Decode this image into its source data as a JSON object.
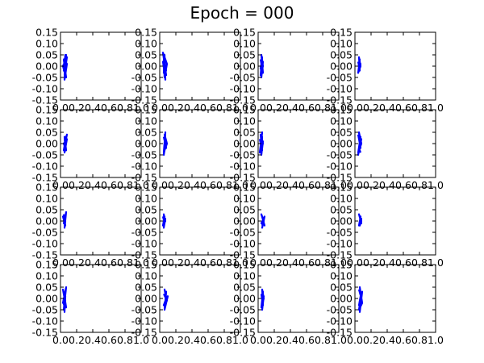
{
  "chart_data": {
    "type": "line",
    "title": "Epoch = 000",
    "grid": false,
    "layout": "4x4 grid of small plots",
    "series_color": "#0000ff",
    "xlim": [
      0.0,
      1.0
    ],
    "ylim": [
      -0.15,
      0.15
    ],
    "xticks": [
      "0.0",
      "0.2",
      "0.4",
      "0.6",
      "0.8",
      "1.0"
    ],
    "yticks": [
      "0.15",
      "0.10",
      "0.05",
      "0.00",
      "-0.05",
      "-0.10",
      "-0.15"
    ],
    "subplots": [
      {
        "x": [
          0.04,
          0.07,
          0.05,
          0.08,
          0.03,
          0.07,
          0.04,
          0.08,
          0.05,
          0.06,
          0.04,
          0.07,
          0.05
        ],
        "y": [
          0.02,
          0.05,
          -0.03,
          0.04,
          0.0,
          -0.05,
          0.03,
          0.01,
          -0.06,
          0.05,
          -0.02,
          0.02,
          -0.04
        ]
      },
      {
        "x": [
          0.05,
          0.08,
          0.04,
          0.09,
          0.06,
          0.05,
          0.08,
          0.04,
          0.07,
          0.06,
          0.05,
          0.08,
          0.06
        ],
        "y": [
          0.03,
          -0.04,
          0.06,
          0.01,
          -0.05,
          0.04,
          -0.02,
          0.02,
          -0.06,
          0.05,
          -0.03,
          0.0,
          -0.05
        ]
      },
      {
        "x": [
          0.03,
          0.06,
          0.04,
          0.06,
          0.03,
          0.05,
          0.04,
          0.06,
          0.04,
          0.05,
          0.03,
          0.05
        ],
        "y": [
          0.03,
          -0.03,
          0.05,
          0.0,
          -0.04,
          0.04,
          -0.02,
          0.02,
          -0.05,
          0.03,
          -0.01,
          -0.03
        ]
      },
      {
        "x": [
          0.04,
          0.06,
          0.05,
          0.07,
          0.04,
          0.06,
          0.05,
          0.07,
          0.04,
          0.06
        ],
        "y": [
          0.02,
          -0.02,
          0.04,
          0.0,
          -0.03,
          0.03,
          -0.01,
          0.01,
          -0.03,
          0.02
        ]
      },
      {
        "x": [
          0.05,
          0.08,
          0.04,
          0.07,
          0.05,
          0.08,
          0.04,
          0.07,
          0.05,
          0.06,
          0.05
        ],
        "y": [
          0.01,
          0.04,
          -0.03,
          0.03,
          -0.04,
          0.02,
          0.0,
          -0.03,
          0.03,
          -0.02,
          -0.04
        ]
      },
      {
        "x": [
          0.05,
          0.08,
          0.06,
          0.09,
          0.05,
          0.07,
          0.06,
          0.08,
          0.05,
          0.07,
          0.06
        ],
        "y": [
          0.03,
          -0.02,
          0.04,
          0.0,
          -0.04,
          0.05,
          -0.03,
          0.01,
          -0.05,
          0.02,
          -0.03
        ]
      },
      {
        "x": [
          0.02,
          0.05,
          0.03,
          0.06,
          0.02,
          0.05,
          0.03,
          0.06,
          0.04,
          0.05,
          0.03,
          0.05
        ],
        "y": [
          0.02,
          -0.03,
          0.04,
          0.0,
          -0.04,
          0.05,
          -0.02,
          0.01,
          -0.05,
          0.03,
          -0.01,
          -0.03
        ]
      },
      {
        "x": [
          0.04,
          0.07,
          0.05,
          0.08,
          0.04,
          0.07,
          0.05,
          0.08,
          0.04,
          0.06,
          0.05,
          0.07
        ],
        "y": [
          0.04,
          -0.02,
          0.05,
          0.0,
          -0.04,
          0.03,
          -0.03,
          0.02,
          -0.05,
          0.01,
          -0.02,
          -0.04
        ]
      },
      {
        "x": [
          0.04,
          0.06,
          0.03,
          0.06,
          0.05,
          0.07,
          0.04,
          0.06,
          0.05
        ],
        "y": [
          0.03,
          -0.02,
          0.02,
          0.0,
          -0.03,
          0.04,
          -0.01,
          0.01,
          -0.02
        ]
      },
      {
        "x": [
          0.04,
          0.06,
          0.05,
          0.07,
          0.04,
          0.06,
          0.05,
          0.07,
          0.05
        ],
        "y": [
          0.02,
          -0.01,
          0.03,
          0.0,
          -0.02,
          0.02,
          -0.03,
          0.01,
          -0.02
        ]
      },
      {
        "x": [
          0.05,
          0.08,
          0.04,
          0.07,
          0.05,
          0.08,
          0.04,
          0.07,
          0.05
        ],
        "y": [
          0.02,
          -0.02,
          0.03,
          0.0,
          -0.03,
          0.02,
          -0.01,
          0.01,
          -0.02
        ]
      },
      {
        "x": [
          0.06,
          0.08,
          0.05,
          0.08,
          0.06,
          0.07,
          0.05,
          0.08,
          0.06
        ],
        "y": [
          0.02,
          -0.01,
          0.03,
          0.0,
          -0.02,
          0.02,
          -0.02,
          0.01,
          -0.02
        ]
      },
      {
        "x": [
          0.04,
          0.07,
          0.03,
          0.06,
          0.04,
          0.07,
          0.03,
          0.06,
          0.05,
          0.06,
          0.04
        ],
        "y": [
          0.03,
          -0.04,
          0.04,
          -0.01,
          -0.05,
          0.05,
          -0.02,
          0.01,
          -0.06,
          0.02,
          -0.03
        ]
      },
      {
        "x": [
          0.05,
          0.09,
          0.06,
          0.08,
          0.05,
          0.1,
          0.06,
          0.08,
          0.07,
          0.06
        ],
        "y": [
          0.02,
          -0.01,
          0.04,
          0.0,
          -0.03,
          0.01,
          -0.05,
          0.03,
          -0.02,
          -0.04
        ]
      },
      {
        "x": [
          0.04,
          0.06,
          0.05,
          0.07,
          0.04,
          0.06,
          0.05,
          0.07,
          0.05,
          0.06
        ],
        "y": [
          0.02,
          -0.03,
          0.04,
          0.0,
          -0.04,
          0.03,
          -0.02,
          0.01,
          -0.05,
          -0.02
        ]
      },
      {
        "x": [
          0.05,
          0.08,
          0.06,
          0.09,
          0.05,
          0.08,
          0.06,
          0.09,
          0.05,
          0.07,
          0.06
        ],
        "y": [
          0.04,
          0.0,
          0.05,
          -0.02,
          -0.05,
          0.02,
          -0.06,
          0.03,
          -0.03,
          0.01,
          -0.04
        ]
      }
    ]
  }
}
